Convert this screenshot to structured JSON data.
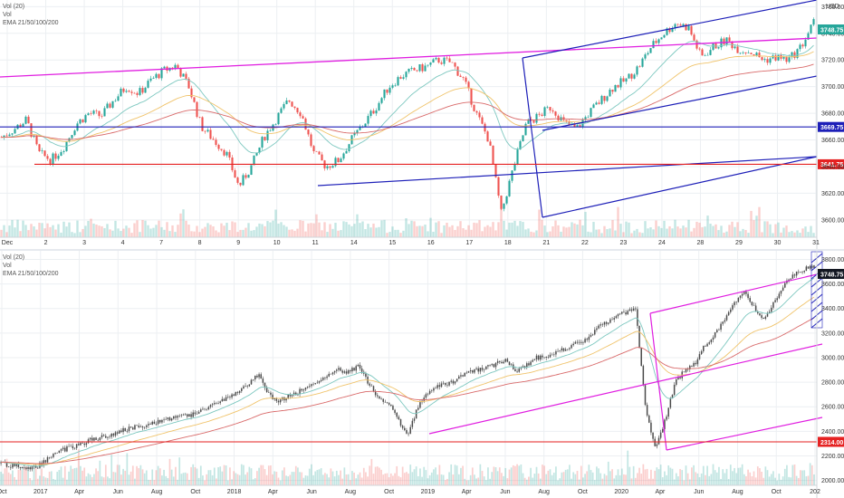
{
  "colors": {
    "background": "#ffffff",
    "grid": "#eceff2",
    "candle_up": "#26a69a",
    "candle_down": "#ef5350",
    "candle_neutral": "#4a4a4a",
    "channel_blue": "#1d1fb8",
    "trend_magenta": "#e01ee0",
    "support_red": "#e52222",
    "ema_fast": "#7ec8c0",
    "ema_mid": "#f0c36a",
    "ema_slow": "#d96a6a",
    "price_tag_green": "#26a69a",
    "price_tag_dark": "#131722"
  },
  "chart_data": [
    {
      "type": "candlestick",
      "panel": "top",
      "legend": [
        "Vol (20)",
        "Vol",
        "EMA 21/50/100/200"
      ],
      "currency_label": "USD",
      "x_tick_labels": [
        "Dec",
        "2",
        "3",
        "4",
        "7",
        "8",
        "9",
        "10",
        "11",
        "14",
        "15",
        "16",
        "17",
        "18",
        "21",
        "22",
        "23",
        "24",
        "28",
        "29",
        "30",
        "31"
      ],
      "y_ticks": [
        3600,
        3620,
        3640,
        3660,
        3680,
        3700,
        3720,
        3740,
        3760
      ],
      "ylim": [
        3587,
        3765
      ],
      "last_price": "3748.75",
      "levels": [
        {
          "label": "3669.75",
          "value": 3669.75,
          "color": "#1d1fb8"
        },
        {
          "label": "3641.75",
          "value": 3641.75,
          "color": "#e52222"
        }
      ],
      "close_series": [
        3662,
        3668,
        3675,
        3650,
        3645,
        3655,
        3672,
        3680,
        3678,
        3690,
        3700,
        3695,
        3705,
        3712,
        3716,
        3700,
        3670,
        3660,
        3650,
        3625,
        3640,
        3662,
        3676,
        3690,
        3680,
        3650,
        3640,
        3645,
        3660,
        3672,
        3685,
        3700,
        3708,
        3712,
        3715,
        3720,
        3718,
        3705,
        3680,
        3660,
        3605,
        3640,
        3672,
        3678,
        3685,
        3673,
        3668,
        3680,
        3690,
        3700,
        3705,
        3715,
        3730,
        3740,
        3748,
        3744,
        3722,
        3730,
        3735,
        3728,
        3726,
        3720,
        3722,
        3720,
        3730,
        3748
      ]
    },
    {
      "type": "candlestick",
      "panel": "bottom",
      "legend": [
        "Vol (20)",
        "Vol",
        "EMA 21/50/100/200"
      ],
      "x_tick_labels": [
        "Oct",
        "2017",
        "Apr",
        "Jun",
        "Aug",
        "Oct",
        "2018",
        "Apr",
        "Jun",
        "Aug",
        "Oct",
        "2019",
        "Apr",
        "Jun",
        "Aug",
        "Oct",
        "2020",
        "Apr",
        "Jun",
        "Aug",
        "Oct",
        "202"
      ],
      "y_ticks": [
        2000,
        2200,
        2400,
        2600,
        2800,
        3000,
        3200,
        3400,
        3600,
        3800
      ],
      "ylim": [
        1960,
        3870
      ],
      "last_price": "3748.75",
      "levels": [
        {
          "label": "2314.00",
          "value": 2314.0,
          "color": "#e52222"
        }
      ],
      "close_series": [
        2140,
        2120,
        2110,
        2090,
        2130,
        2200,
        2240,
        2270,
        2290,
        2330,
        2350,
        2370,
        2400,
        2430,
        2440,
        2460,
        2480,
        2500,
        2510,
        2530,
        2560,
        2600,
        2640,
        2680,
        2720,
        2780,
        2870,
        2700,
        2640,
        2690,
        2720,
        2760,
        2800,
        2850,
        2900,
        2880,
        2930,
        2800,
        2680,
        2640,
        2500,
        2350,
        2600,
        2700,
        2760,
        2790,
        2820,
        2880,
        2900,
        2920,
        2950,
        2980,
        2890,
        2940,
        3000,
        3010,
        3050,
        3080,
        3120,
        3150,
        3230,
        3290,
        3330,
        3370,
        3400,
        2600,
        2250,
        2500,
        2800,
        2900,
        2950,
        3100,
        3200,
        3300,
        3450,
        3550,
        3400,
        3300,
        3450,
        3600,
        3680,
        3720,
        3748
      ]
    }
  ]
}
